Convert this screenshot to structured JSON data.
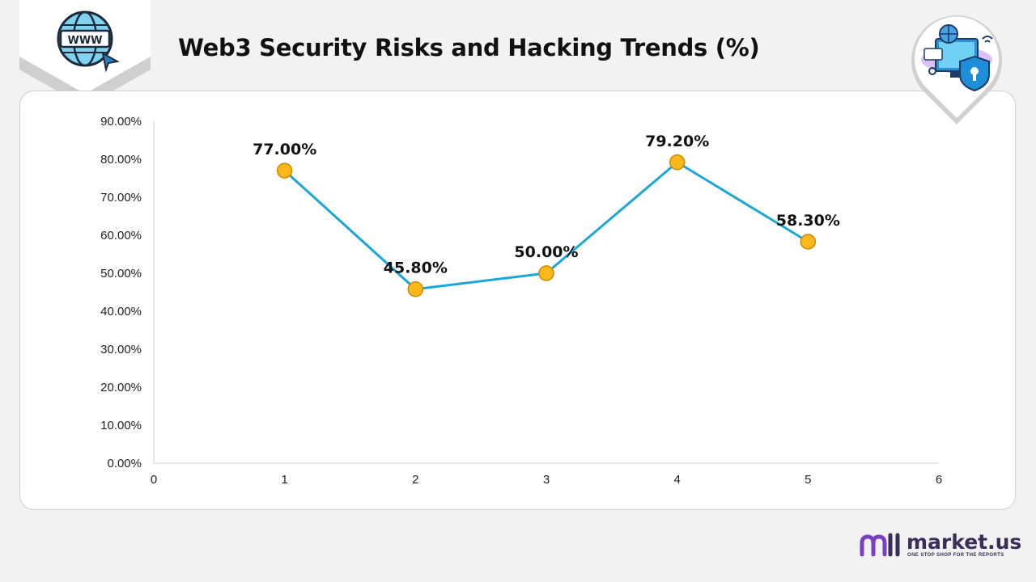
{
  "header": {
    "title": "Web3 Security Risks and Hacking Trends (%)",
    "left_icon": "www-globe-icon",
    "right_icon": "security-shield-icon"
  },
  "brand": {
    "name": "market.us",
    "tagline": "ONE STOP SHOP FOR THE REPORTS",
    "logo_icon": "market-us-logo-icon"
  },
  "colors": {
    "line": "#1aa7d8",
    "marker_fill": "#ffb81c",
    "marker_stroke": "#c98a00",
    "brand": "#3b2e58",
    "brand_accent": "#7b3fc4"
  },
  "chart_data": {
    "type": "line",
    "title": "Web3 Security Risks and Hacking Trends (%)",
    "x": [
      1,
      2,
      3,
      4,
      5
    ],
    "y": [
      77.0,
      45.8,
      50.0,
      79.2,
      58.3
    ],
    "data_labels": [
      "77.00%",
      "45.80%",
      "50.00%",
      "79.20%",
      "58.30%"
    ],
    "xlim": [
      0,
      6
    ],
    "ylim": [
      0,
      90
    ],
    "x_ticks": [
      "0",
      "1",
      "2",
      "3",
      "4",
      "5",
      "6"
    ],
    "y_ticks": [
      "0.00%",
      "10.00%",
      "20.00%",
      "30.00%",
      "40.00%",
      "50.00%",
      "60.00%",
      "70.00%",
      "80.00%",
      "90.00%"
    ],
    "grid": false,
    "legend": "none"
  }
}
